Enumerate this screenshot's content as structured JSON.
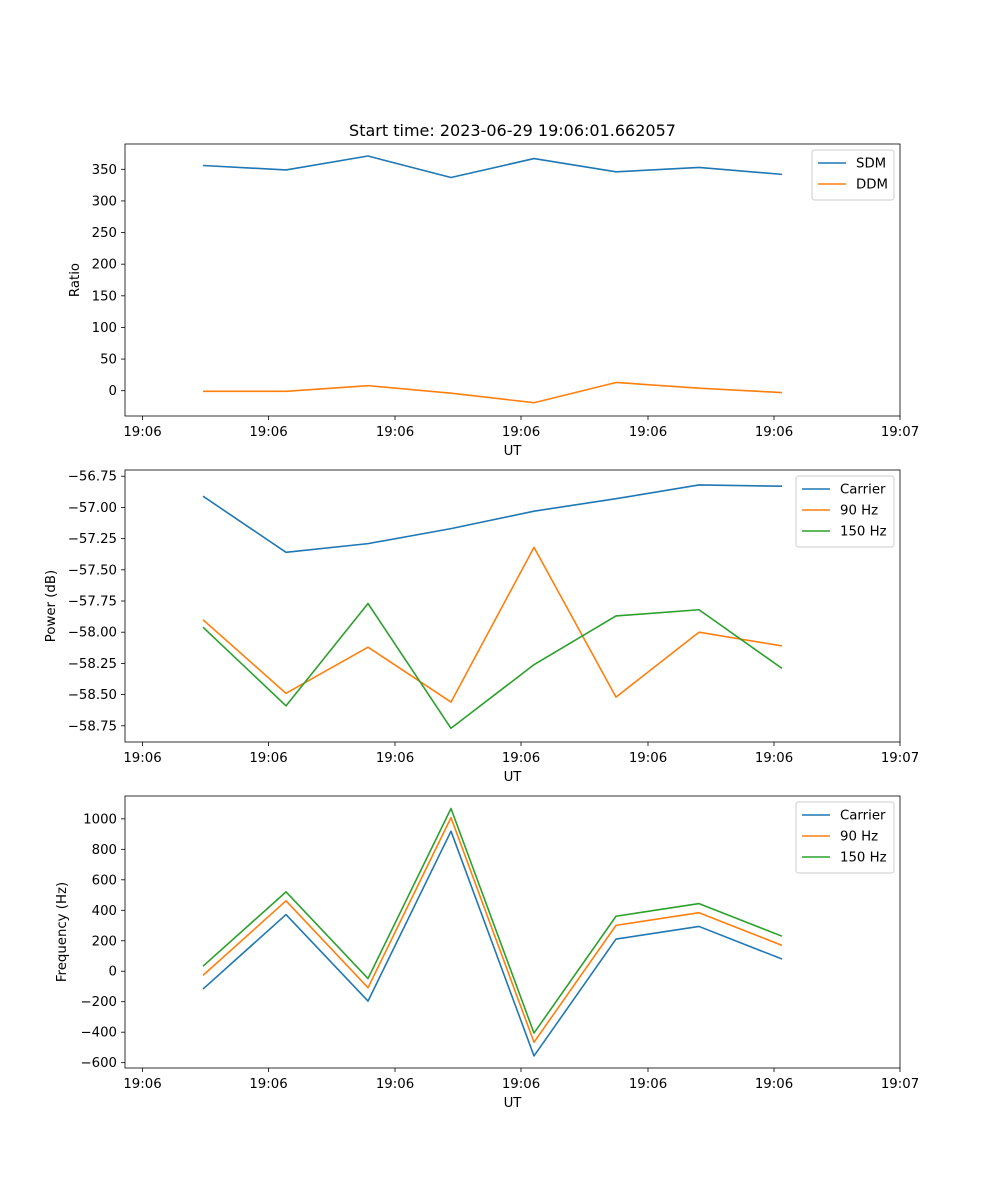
{
  "chart_data": [
    {
      "type": "line",
      "title": "Start time: 2023-06-29 19:06:01.662057",
      "xlabel": "UT",
      "ylabel": "Ratio",
      "x_tick_labels": [
        "19:06",
        "19:06",
        "19:06",
        "19:06",
        "19:06",
        "19:06",
        "19:06",
        "19:07"
      ],
      "y_ticks": [
        0,
        50,
        100,
        150,
        200,
        250,
        300,
        350
      ],
      "ylim": [
        -40,
        390
      ],
      "legend_position": "upper-right",
      "series": [
        {
          "name": "SDM",
          "color": "#1f77b4",
          "values": [
            356,
            349,
            371,
            337,
            367,
            346,
            353,
            342
          ]
        },
        {
          "name": "DDM",
          "color": "#ff7f0e",
          "values": [
            -1,
            -1,
            8,
            -4,
            -19,
            13,
            4,
            -3
          ]
        }
      ]
    },
    {
      "type": "line",
      "title": "",
      "xlabel": "UT",
      "ylabel": "Power (dB)",
      "x_tick_labels": [
        "19:06",
        "19:06",
        "19:06",
        "19:06",
        "19:06",
        "19:06",
        "19:06",
        "19:07"
      ],
      "y_ticks": [
        -58.75,
        -58.5,
        -58.25,
        -58.0,
        -57.75,
        -57.5,
        -57.25,
        -57.0,
        -56.75
      ],
      "y_tick_labels": [
        "−58.75",
        "−58.50",
        "−58.25",
        "−58.00",
        "−57.75",
        "−57.50",
        "−57.25",
        "−57.00",
        "−56.75"
      ],
      "ylim": [
        -58.88,
        -56.7
      ],
      "legend_position": "upper-right",
      "series": [
        {
          "name": "Carrier",
          "color": "#1f77b4",
          "values": [
            -56.91,
            -57.36,
            -57.29,
            -57.17,
            -57.03,
            -56.93,
            -56.82,
            -56.83
          ]
        },
        {
          "name": "90 Hz",
          "color": "#ff7f0e",
          "values": [
            -57.9,
            -58.49,
            -58.12,
            -58.56,
            -57.32,
            -58.52,
            -58.0,
            -58.11
          ]
        },
        {
          "name": "150 Hz",
          "color": "#2ca02c",
          "values": [
            -57.96,
            -58.59,
            -57.77,
            -58.77,
            -58.26,
            -57.87,
            -57.82,
            -58.29
          ]
        }
      ]
    },
    {
      "type": "line",
      "title": "",
      "xlabel": "UT",
      "ylabel": "Frequency (Hz)",
      "x_tick_labels": [
        "19:06",
        "19:06",
        "19:06",
        "19:06",
        "19:06",
        "19:06",
        "19:06",
        "19:07"
      ],
      "y_ticks": [
        -600,
        -400,
        -200,
        0,
        200,
        400,
        600,
        800,
        1000
      ],
      "y_tick_labels": [
        "−600",
        "−400",
        "−200",
        "0",
        "200",
        "400",
        "600",
        "800",
        "1000"
      ],
      "ylim": [
        -635,
        1150
      ],
      "legend_position": "upper-right",
      "series": [
        {
          "name": "Carrier",
          "color": "#1f77b4",
          "values": [
            -117,
            372,
            -196,
            919,
            -556,
            211,
            294,
            80
          ]
        },
        {
          "name": "90 Hz",
          "color": "#ff7f0e",
          "values": [
            -27,
            462,
            -108,
            1008,
            -466,
            301,
            384,
            170
          ]
        },
        {
          "name": "150 Hz",
          "color": "#2ca02c",
          "values": [
            33,
            521,
            -48,
            1068,
            -406,
            361,
            444,
            230
          ]
        }
      ]
    }
  ]
}
